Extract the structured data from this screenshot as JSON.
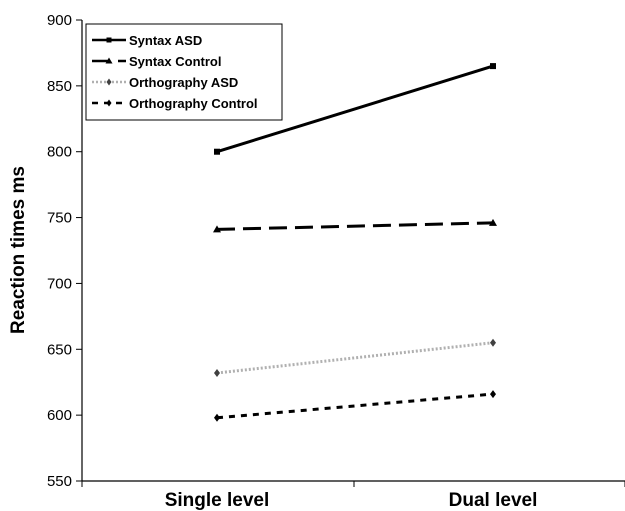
{
  "chart_data": {
    "type": "line",
    "categories": [
      "Single level",
      "Dual level"
    ],
    "ylabel": "Reaction times ms",
    "xlabel": "",
    "ylim": [
      550,
      900
    ],
    "yticks": [
      550,
      600,
      650,
      700,
      750,
      800,
      850,
      900
    ],
    "grid": false,
    "legend_position": "top-left",
    "series": [
      {
        "name": "Syntax ASD",
        "values": [
          800,
          865
        ],
        "color": "#000000",
        "dash": "solid",
        "marker": "square",
        "width": 3
      },
      {
        "name": "Syntax Control",
        "values": [
          741,
          746
        ],
        "color": "#000000",
        "dash": "long-dash",
        "marker": "triangle",
        "width": 3
      },
      {
        "name": "Orthography ASD",
        "values": [
          632,
          655
        ],
        "color": "#b0b0b0",
        "dash": "dotted",
        "marker": "diamond",
        "width": 3
      },
      {
        "name": "Orthography Control",
        "values": [
          598,
          616
        ],
        "color": "#000000",
        "dash": "short-dash",
        "marker": "diamond",
        "width": 3
      }
    ]
  }
}
